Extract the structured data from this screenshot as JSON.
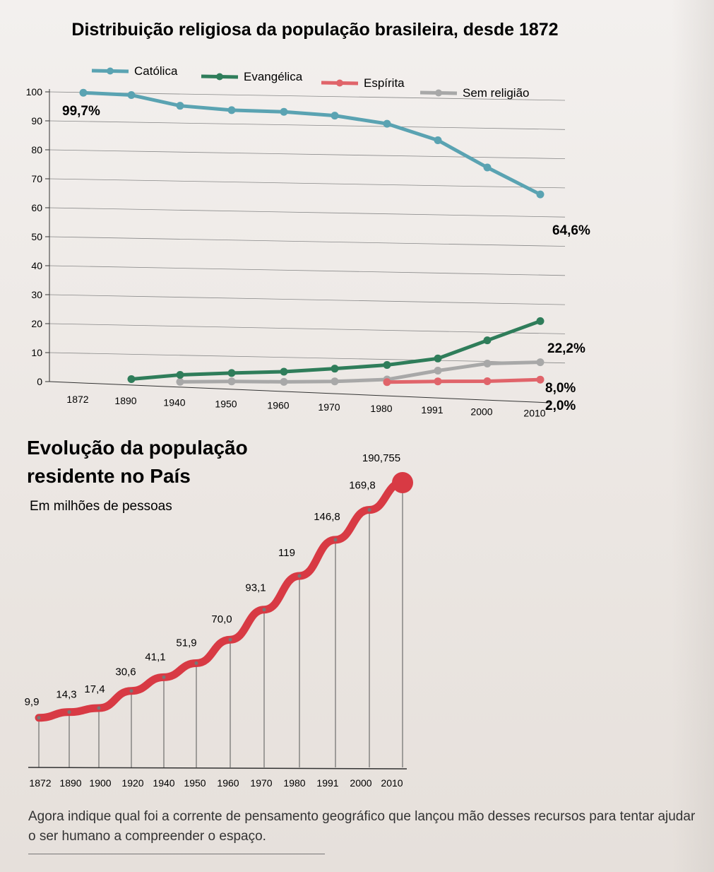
{
  "chart_data": [
    {
      "type": "line",
      "title": "Distribuição religiosa da população brasileira, desde 1872",
      "categories": [
        "1872",
        "1890",
        "1940",
        "1950",
        "1960",
        "1970",
        "1980",
        "1991",
        "2000",
        "2010"
      ],
      "ylim": [
        0,
        100
      ],
      "yticks": [
        "0",
        "10",
        "20",
        "30",
        "40",
        "50",
        "60",
        "70",
        "80",
        "90",
        "100"
      ],
      "legend_position": "top",
      "grid": true,
      "series": [
        {
          "name": "Católica",
          "color": "#5aa3b2",
          "values": [
            99.7,
            98.9,
            95.2,
            93.7,
            93.1,
            91.8,
            89.0,
            83.3,
            73.9,
            64.6
          ]
        },
        {
          "name": "Evangélica",
          "color": "#2f7d5a",
          "values": [
            null,
            1.0,
            2.6,
            3.4,
            4.0,
            5.2,
            6.6,
            9.0,
            15.4,
            22.2
          ]
        },
        {
          "name": "Espírita",
          "color": "#e0646a",
          "values": [
            null,
            null,
            null,
            null,
            null,
            null,
            0.7,
            1.1,
            1.3,
            2.0
          ]
        },
        {
          "name": "Sem religião",
          "color": "#a8a8a8",
          "values": [
            null,
            null,
            0.2,
            0.5,
            0.5,
            0.8,
            1.6,
            4.8,
            7.4,
            8.0
          ]
        }
      ],
      "annotations": {
        "catolica_start": "99,7%",
        "catolica_end": "64,6%",
        "evangelica_end": "22,2%",
        "sem_religiao_end": "8,0%",
        "espirita_end": "2,0%"
      }
    },
    {
      "type": "line",
      "title": "Evolução da população residente no País",
      "subtitle": "Em milhões de pessoas",
      "color": "#d83a44",
      "categories": [
        "1872",
        "1890",
        "1900",
        "1920",
        "1940",
        "1950",
        "1960",
        "1970",
        "1980",
        "1991",
        "2000",
        "2010"
      ],
      "values": [
        9.9,
        14.3,
        17.4,
        30.6,
        41.1,
        51.9,
        70.0,
        93.1,
        119,
        146.8,
        169.8,
        190.755
      ],
      "labels": [
        "9,9",
        "14,3",
        "17,4",
        "30,6",
        "41,1",
        "51,9",
        "70,0",
        "93,1",
        "119",
        "146,8",
        "169,8",
        "190,755"
      ]
    }
  ],
  "footer_text": "Agora indique qual foi a corrente de pensamento geográfico que lançou mão desses recursos para tentar ajudar o ser humano a compreender o espaço."
}
